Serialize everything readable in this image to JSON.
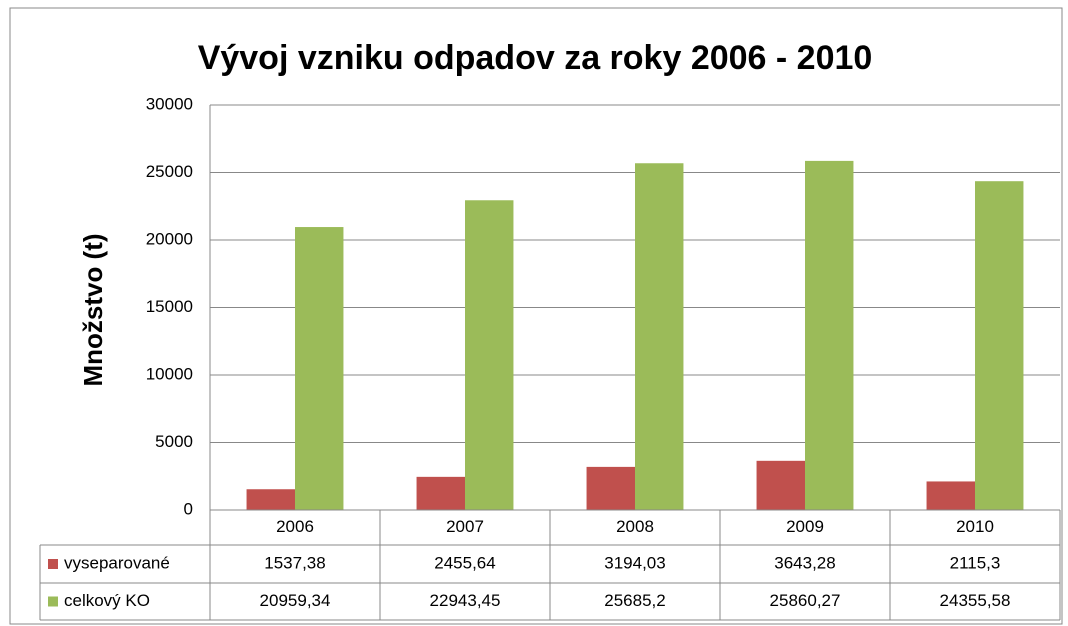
{
  "chart_data": {
    "type": "bar",
    "title": "Vývoj vzniku odpadov za roky 2006 - 2010",
    "ylabel": "Množstvo (t)",
    "categories": [
      "2006",
      "2007",
      "2008",
      "2009",
      "2010"
    ],
    "series": [
      {
        "name": "vyseparované",
        "color": "#c0504d",
        "values": [
          1537.38,
          2455.64,
          3194.03,
          3643.28,
          2115.3
        ],
        "value_labels": [
          "1537,38",
          "2455,64",
          "3194,03",
          "3643,28",
          "2115,3"
        ]
      },
      {
        "name": "celkový KO",
        "color": "#9bbb59",
        "values": [
          20959.34,
          22943.45,
          25685.2,
          25860.27,
          24355.58
        ],
        "value_labels": [
          "20959,34",
          "22943,45",
          "25685,2",
          "25860,27",
          "24355,58"
        ]
      }
    ],
    "ylim": [
      0,
      30000
    ],
    "yticks": [
      0,
      5000,
      10000,
      15000,
      20000,
      25000,
      30000
    ],
    "grid": true
  }
}
